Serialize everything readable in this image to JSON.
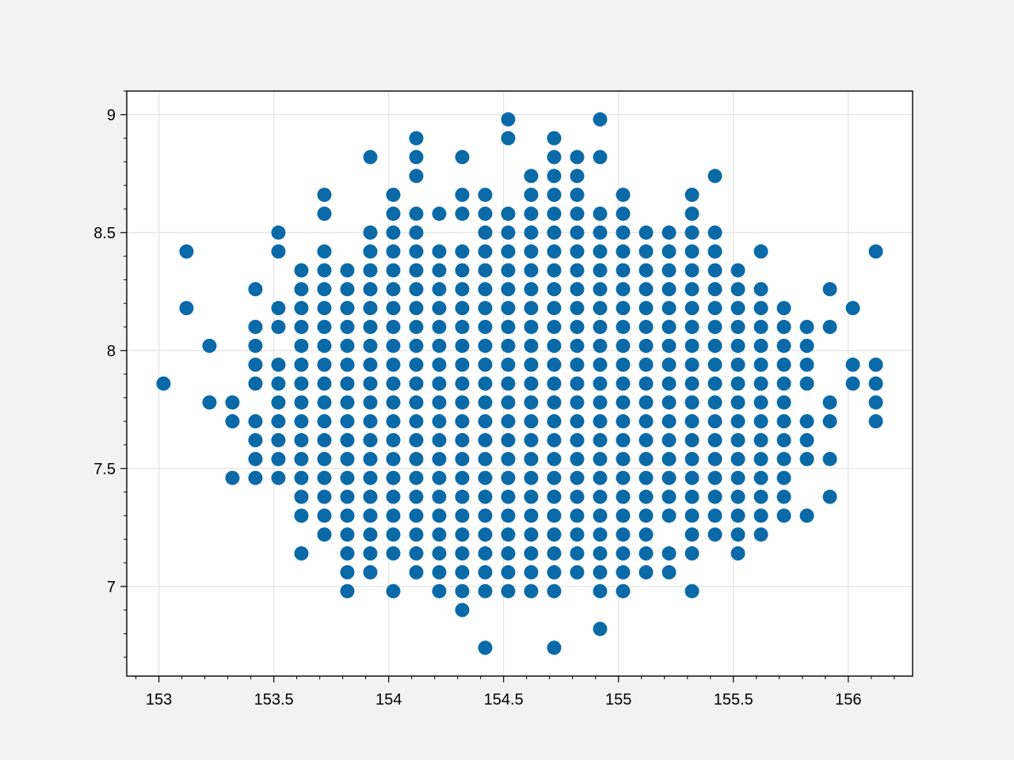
{
  "chart_data": {
    "type": "scatter",
    "title": "",
    "xlabel": "",
    "ylabel": "",
    "xlim": [
      152.86,
      156.28
    ],
    "ylim": [
      6.62,
      9.1
    ],
    "grid": true,
    "legend": "none",
    "colors": {
      "marker": "#0a6aa8",
      "background": "#f2f2f2",
      "plot_area": "#ffffff",
      "grid": "#dddddd"
    },
    "x_ticks": [
      153,
      153.5,
      154,
      154.5,
      155,
      155.5,
      156
    ],
    "x_tick_labels": [
      "153",
      "153.5",
      "154",
      "154.5",
      "155",
      "155.5",
      "156"
    ],
    "y_ticks": [
      7,
      7.5,
      8,
      8.5,
      9
    ],
    "y_tick_labels": [
      "7",
      "7.5",
      "8",
      "8.5",
      "9"
    ],
    "columns": [
      {
        "x": 153.02,
        "y": [
          7.86
        ]
      },
      {
        "x": 153.12,
        "y": [
          8.18,
          8.42
        ]
      },
      {
        "x": 153.22,
        "y": [
          7.78,
          8.02
        ]
      },
      {
        "x": 153.32,
        "y": [
          7.46,
          7.7,
          7.78
        ]
      },
      {
        "x": 153.42,
        "y": [
          7.46,
          7.54,
          7.62,
          7.7,
          7.86,
          7.94,
          8.02,
          8.1,
          8.26
        ]
      },
      {
        "x": 153.52,
        "y": [
          7.46,
          7.54,
          7.62,
          7.7,
          7.78,
          7.86,
          7.94,
          8.1,
          8.18,
          8.42,
          8.5
        ]
      },
      {
        "x": 153.62,
        "y": [
          7.14,
          7.3,
          7.38,
          7.46,
          7.54,
          7.62,
          7.7,
          7.78,
          7.86,
          7.94,
          8.02,
          8.1,
          8.18,
          8.26,
          8.34
        ]
      },
      {
        "x": 153.72,
        "y": [
          7.22,
          7.3,
          7.38,
          7.46,
          7.54,
          7.62,
          7.7,
          7.78,
          7.86,
          7.94,
          8.02,
          8.1,
          8.18,
          8.26,
          8.34,
          8.42,
          8.58,
          8.66
        ]
      },
      {
        "x": 153.82,
        "y": [
          6.98,
          7.06,
          7.14,
          7.22,
          7.3,
          7.38,
          7.46,
          7.54,
          7.62,
          7.7,
          7.78,
          7.86,
          7.94,
          8.02,
          8.1,
          8.18,
          8.26,
          8.34
        ]
      },
      {
        "x": 153.92,
        "y": [
          7.06,
          7.14,
          7.22,
          7.3,
          7.38,
          7.46,
          7.54,
          7.62,
          7.7,
          7.78,
          7.86,
          7.94,
          8.02,
          8.1,
          8.18,
          8.26,
          8.34,
          8.42,
          8.5,
          8.82
        ]
      },
      {
        "x": 154.02,
        "y": [
          6.98,
          7.14,
          7.22,
          7.3,
          7.38,
          7.46,
          7.54,
          7.62,
          7.7,
          7.78,
          7.86,
          7.94,
          8.02,
          8.1,
          8.18,
          8.26,
          8.34,
          8.42,
          8.5,
          8.58,
          8.66
        ]
      },
      {
        "x": 154.12,
        "y": [
          7.06,
          7.14,
          7.22,
          7.3,
          7.38,
          7.46,
          7.54,
          7.62,
          7.7,
          7.78,
          7.86,
          7.94,
          8.02,
          8.1,
          8.18,
          8.26,
          8.34,
          8.42,
          8.5,
          8.58,
          8.74,
          8.82,
          8.9
        ]
      },
      {
        "x": 154.22,
        "y": [
          6.98,
          7.06,
          7.14,
          7.22,
          7.3,
          7.38,
          7.46,
          7.54,
          7.62,
          7.7,
          7.78,
          7.86,
          7.94,
          8.02,
          8.1,
          8.18,
          8.26,
          8.34,
          8.42,
          8.58
        ]
      },
      {
        "x": 154.32,
        "y": [
          6.9,
          6.98,
          7.06,
          7.14,
          7.22,
          7.3,
          7.38,
          7.46,
          7.54,
          7.62,
          7.7,
          7.78,
          7.86,
          7.94,
          8.02,
          8.1,
          8.18,
          8.26,
          8.34,
          8.42,
          8.58,
          8.66,
          8.82
        ]
      },
      {
        "x": 154.42,
        "y": [
          6.74,
          6.98,
          7.06,
          7.14,
          7.22,
          7.3,
          7.38,
          7.46,
          7.54,
          7.62,
          7.7,
          7.78,
          7.86,
          7.94,
          8.02,
          8.1,
          8.18,
          8.26,
          8.34,
          8.42,
          8.5,
          8.58,
          8.66
        ]
      },
      {
        "x": 154.52,
        "y": [
          6.98,
          7.06,
          7.14,
          7.22,
          7.3,
          7.38,
          7.46,
          7.54,
          7.62,
          7.7,
          7.78,
          7.86,
          7.94,
          8.02,
          8.1,
          8.18,
          8.26,
          8.34,
          8.42,
          8.5,
          8.58,
          8.9,
          8.98
        ]
      },
      {
        "x": 154.62,
        "y": [
          6.98,
          7.06,
          7.14,
          7.22,
          7.3,
          7.38,
          7.46,
          7.54,
          7.62,
          7.7,
          7.78,
          7.86,
          7.94,
          8.02,
          8.1,
          8.18,
          8.26,
          8.34,
          8.42,
          8.5,
          8.58,
          8.66,
          8.74
        ]
      },
      {
        "x": 154.72,
        "y": [
          6.74,
          6.98,
          7.06,
          7.14,
          7.22,
          7.3,
          7.38,
          7.46,
          7.54,
          7.62,
          7.7,
          7.78,
          7.86,
          7.94,
          8.02,
          8.1,
          8.18,
          8.26,
          8.34,
          8.42,
          8.5,
          8.58,
          8.66,
          8.74,
          8.82,
          8.9
        ]
      },
      {
        "x": 154.82,
        "y": [
          7.06,
          7.14,
          7.22,
          7.3,
          7.38,
          7.46,
          7.54,
          7.62,
          7.7,
          7.78,
          7.86,
          7.94,
          8.02,
          8.1,
          8.18,
          8.26,
          8.34,
          8.42,
          8.5,
          8.58,
          8.66,
          8.74,
          8.82
        ]
      },
      {
        "x": 154.92,
        "y": [
          6.82,
          6.98,
          7.06,
          7.14,
          7.22,
          7.3,
          7.38,
          7.46,
          7.54,
          7.62,
          7.7,
          7.78,
          7.86,
          7.94,
          8.02,
          8.1,
          8.18,
          8.26,
          8.34,
          8.42,
          8.5,
          8.58,
          8.82,
          8.98
        ]
      },
      {
        "x": 155.02,
        "y": [
          6.98,
          7.06,
          7.14,
          7.22,
          7.3,
          7.38,
          7.46,
          7.54,
          7.62,
          7.7,
          7.78,
          7.86,
          7.94,
          8.02,
          8.1,
          8.18,
          8.26,
          8.34,
          8.42,
          8.5,
          8.58,
          8.66
        ]
      },
      {
        "x": 155.12,
        "y": [
          7.06,
          7.14,
          7.22,
          7.3,
          7.38,
          7.46,
          7.54,
          7.62,
          7.7,
          7.78,
          7.86,
          7.94,
          8.02,
          8.1,
          8.18,
          8.26,
          8.34,
          8.42,
          8.5
        ]
      },
      {
        "x": 155.22,
        "y": [
          7.06,
          7.14,
          7.3,
          7.38,
          7.46,
          7.54,
          7.62,
          7.7,
          7.78,
          7.86,
          7.94,
          8.02,
          8.1,
          8.18,
          8.26,
          8.34,
          8.42,
          8.5
        ]
      },
      {
        "x": 155.32,
        "y": [
          6.98,
          7.14,
          7.22,
          7.3,
          7.38,
          7.46,
          7.54,
          7.62,
          7.7,
          7.78,
          7.86,
          7.94,
          8.02,
          8.1,
          8.18,
          8.26,
          8.34,
          8.42,
          8.5,
          8.58,
          8.66
        ]
      },
      {
        "x": 155.42,
        "y": [
          7.22,
          7.3,
          7.38,
          7.46,
          7.54,
          7.62,
          7.7,
          7.78,
          7.86,
          7.94,
          8.02,
          8.1,
          8.18,
          8.26,
          8.34,
          8.42,
          8.5,
          8.74
        ]
      },
      {
        "x": 155.52,
        "y": [
          7.14,
          7.22,
          7.3,
          7.38,
          7.46,
          7.54,
          7.62,
          7.7,
          7.78,
          7.86,
          7.94,
          8.02,
          8.1,
          8.18,
          8.26,
          8.34
        ]
      },
      {
        "x": 155.62,
        "y": [
          7.22,
          7.3,
          7.38,
          7.46,
          7.54,
          7.62,
          7.7,
          7.78,
          7.86,
          7.94,
          8.02,
          8.1,
          8.18,
          8.26,
          8.42
        ]
      },
      {
        "x": 155.72,
        "y": [
          7.3,
          7.38,
          7.46,
          7.54,
          7.62,
          7.7,
          7.78,
          7.86,
          7.94,
          8.02,
          8.1,
          8.18
        ]
      },
      {
        "x": 155.82,
        "y": [
          7.3,
          7.54,
          7.62,
          7.7,
          7.86,
          7.94,
          8.02,
          8.1
        ]
      },
      {
        "x": 155.92,
        "y": [
          7.38,
          7.54,
          7.7,
          7.78,
          8.1,
          8.26
        ]
      },
      {
        "x": 156.02,
        "y": [
          7.86,
          7.94,
          8.18
        ]
      },
      {
        "x": 156.12,
        "y": [
          7.7,
          7.78,
          7.86,
          7.94,
          8.42
        ]
      }
    ]
  }
}
